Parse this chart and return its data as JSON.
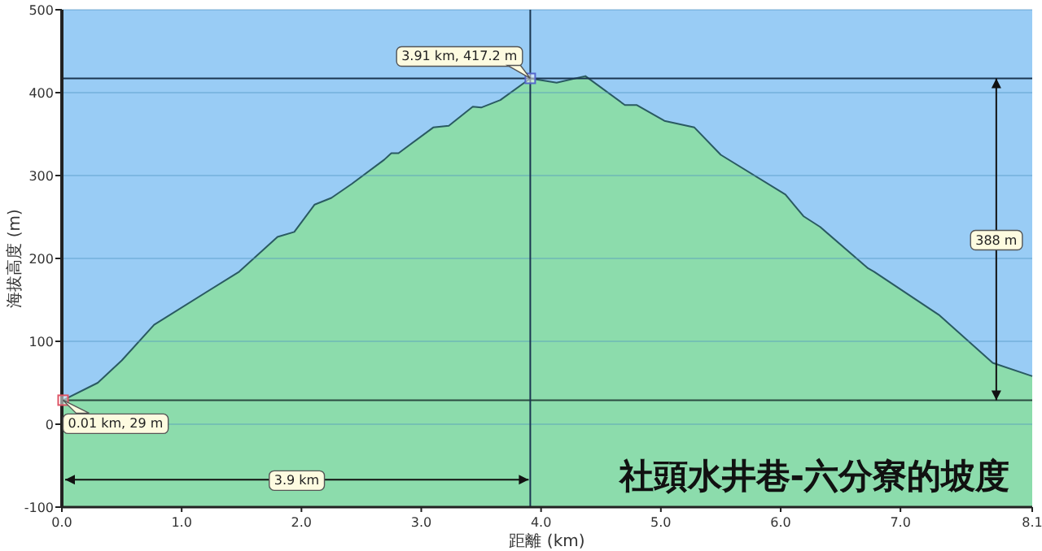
{
  "chart_data": {
    "type": "area",
    "title": "社頭水井巷-六分寮的坡度",
    "xlabel": "距離 (km)",
    "ylabel": "海拔高度 (m)",
    "x": [
      0.01,
      0.3,
      0.5,
      0.77,
      1.48,
      1.8,
      1.94,
      2.11,
      2.25,
      2.42,
      2.69,
      2.75,
      2.81,
      3.1,
      3.23,
      3.43,
      3.5,
      3.66,
      3.91,
      4.13,
      4.37,
      4.7,
      4.8,
      5.03,
      5.28,
      5.5,
      6.04,
      6.19,
      6.33,
      6.73,
      6.78,
      7.32,
      7.77,
      8.1
    ],
    "series": [
      {
        "color": "#8cdcac",
        "values": [
          29,
          50,
          77,
          120,
          184,
          226,
          232,
          265,
          273,
          290,
          319,
          327,
          327,
          358,
          360,
          383,
          382,
          391,
          417.2,
          412,
          420,
          385,
          385,
          366,
          358,
          325,
          277,
          251,
          238,
          188,
          184,
          132,
          74,
          58
        ]
      }
    ],
    "xlim": [
      0,
      8.1
    ],
    "ylim": [
      -100,
      500
    ],
    "xticks": [
      {
        "value": 0,
        "label": "0.0"
      },
      {
        "value": 1,
        "label": "1.0"
      },
      {
        "value": 2,
        "label": "2.0"
      },
      {
        "value": 3,
        "label": "3.0"
      },
      {
        "value": 4,
        "label": "4.0"
      },
      {
        "value": 5,
        "label": "5.0"
      },
      {
        "value": 6,
        "label": "6.0"
      },
      {
        "value": 7,
        "label": "7.0"
      },
      {
        "value": 8.1,
        "label": "8.1"
      }
    ],
    "yticks": [
      -100,
      0,
      100,
      200,
      300,
      400,
      500
    ],
    "grid": "y",
    "ref_lines": [
      {
        "axis": "y",
        "value": 417.2,
        "color": "#1a3550"
      },
      {
        "axis": "y",
        "value": 29,
        "color": "#2a4a40"
      },
      {
        "axis": "x",
        "value": 3.91,
        "color": "#1a3550"
      }
    ],
    "annotations": [
      {
        "text": "3.91 km, 417.2 m",
        "x": 3.91,
        "y": 417.2
      },
      {
        "text": "0.01 km, 29 m",
        "x": 0.01,
        "y": 29
      },
      {
        "text": "3.9 km",
        "x": 1.96,
        "y": -67
      },
      {
        "text": "388 m",
        "x": 7.8,
        "y": 223
      }
    ]
  }
}
